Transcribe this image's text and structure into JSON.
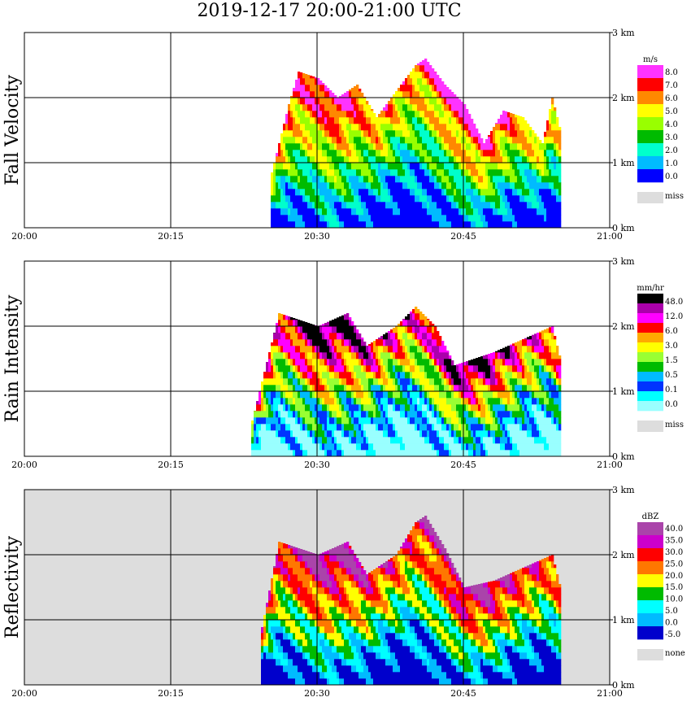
{
  "title": "2019-12-17   20:00-21:00 UTC",
  "chart_data": [
    {
      "type": "heatmap",
      "ylabel": "Fall Velocity",
      "x_ticks": [
        "20:00",
        "20:15",
        "20:30",
        "20:45",
        "21:00"
      ],
      "y_ticks": [
        "0 km",
        "1 km",
        "2 km",
        "3 km"
      ],
      "xlim": [
        "20:00",
        "21:00"
      ],
      "ylim_km": [
        0,
        3
      ],
      "grid": true,
      "background": "#ffffff",
      "colorbar": {
        "unit": "m/s",
        "labels": [
          "8.0",
          "7.0",
          "6.0",
          "5.0",
          "4.0",
          "3.0",
          "2.0",
          "1.0",
          "0.0"
        ],
        "colors": [
          "#ff33ff",
          "#ff0000",
          "#ff8800",
          "#ffff00",
          "#99ff00",
          "#00bb00",
          "#00ffcc",
          "#00bbff",
          "#0000ff"
        ],
        "missing_label": "miss",
        "missing_color": "#dddddd"
      },
      "echo_top_km": [
        [
          "20:25",
          0.7
        ],
        [
          "20:27",
          1.9
        ],
        [
          "20:28",
          2.4
        ],
        [
          "20:30",
          2.3
        ],
        [
          "20:32",
          2.0
        ],
        [
          "20:34",
          2.2
        ],
        [
          "20:36",
          1.7
        ],
        [
          "20:38",
          2.1
        ],
        [
          "20:40",
          2.5
        ],
        [
          "20:41",
          2.6
        ],
        [
          "20:43",
          2.2
        ],
        [
          "20:45",
          1.9
        ],
        [
          "20:47",
          1.3
        ],
        [
          "20:49",
          1.8
        ],
        [
          "20:51",
          1.7
        ],
        [
          "20:53",
          1.3
        ],
        [
          "20:54",
          2.0
        ],
        [
          "20:55",
          1.4
        ]
      ]
    },
    {
      "type": "heatmap",
      "ylabel": "Rain Intensity",
      "x_ticks": [
        "20:00",
        "20:15",
        "20:30",
        "20:45",
        "21:00"
      ],
      "y_ticks": [
        "0 km",
        "1 km",
        "2 km",
        "3 km"
      ],
      "xlim": [
        "20:00",
        "21:00"
      ],
      "ylim_km": [
        0,
        3
      ],
      "grid": true,
      "background": "#ffffff",
      "colorbar": {
        "unit": "mm/hr",
        "labels": [
          "48.0",
          "12.0",
          "6.0",
          "3.0",
          "1.5",
          "0.5",
          "0.1",
          "0.0"
        ],
        "colors": [
          "#000000",
          "#aa00aa",
          "#ff00ff",
          "#ff0000",
          "#ffaa00",
          "#ffff00",
          "#99ff33",
          "#00bb00",
          "#00bbff",
          "#0033ff",
          "#00ffff",
          "#99ffff"
        ],
        "missing_label": "miss",
        "missing_color": "#dddddd"
      },
      "echo_top_km": [
        [
          "20:23",
          0.4
        ],
        [
          "20:26",
          2.2
        ],
        [
          "20:28",
          2.1
        ],
        [
          "20:30",
          2.0
        ],
        [
          "20:33",
          2.2
        ],
        [
          "20:35",
          1.7
        ],
        [
          "20:38",
          2.0
        ],
        [
          "20:40",
          2.3
        ],
        [
          "20:42",
          2.0
        ],
        [
          "20:44",
          1.4
        ],
        [
          "20:48",
          1.6
        ],
        [
          "20:51",
          1.8
        ],
        [
          "20:54",
          2.0
        ],
        [
          "20:55",
          1.4
        ]
      ]
    },
    {
      "type": "heatmap",
      "ylabel": "Reflectivity",
      "x_ticks": [
        "20:00",
        "20:15",
        "20:30",
        "20:45",
        "21:00"
      ],
      "y_ticks": [
        "0 km",
        "1 km",
        "2 km",
        "3 km"
      ],
      "xlim": [
        "20:00",
        "21:00"
      ],
      "ylim_km": [
        0,
        3
      ],
      "grid": true,
      "background": "#dddddd",
      "colorbar": {
        "unit": "dBZ",
        "labels": [
          "40.0",
          "35.0",
          "30.0",
          "25.0",
          "20.0",
          "15.0",
          "10.0",
          "5.0",
          "0.0",
          "-5.0"
        ],
        "colors": [
          "#aa44aa",
          "#cc00cc",
          "#ff0000",
          "#ff7700",
          "#ffff00",
          "#00bb00",
          "#00ffff",
          "#00bbff",
          "#0000cc"
        ],
        "missing_label": "none",
        "missing_color": "#dddddd"
      },
      "echo_top_km": [
        [
          "20:24",
          0.7
        ],
        [
          "20:26",
          2.2
        ],
        [
          "20:28",
          2.1
        ],
        [
          "20:30",
          2.0
        ],
        [
          "20:33",
          2.2
        ],
        [
          "20:35",
          1.7
        ],
        [
          "20:38",
          2.0
        ],
        [
          "20:40",
          2.5
        ],
        [
          "20:41",
          2.6
        ],
        [
          "20:43",
          2.1
        ],
        [
          "20:45",
          1.5
        ],
        [
          "20:48",
          1.6
        ],
        [
          "20:51",
          1.8
        ],
        [
          "20:54",
          2.0
        ],
        [
          "20:55",
          1.4
        ]
      ]
    }
  ]
}
